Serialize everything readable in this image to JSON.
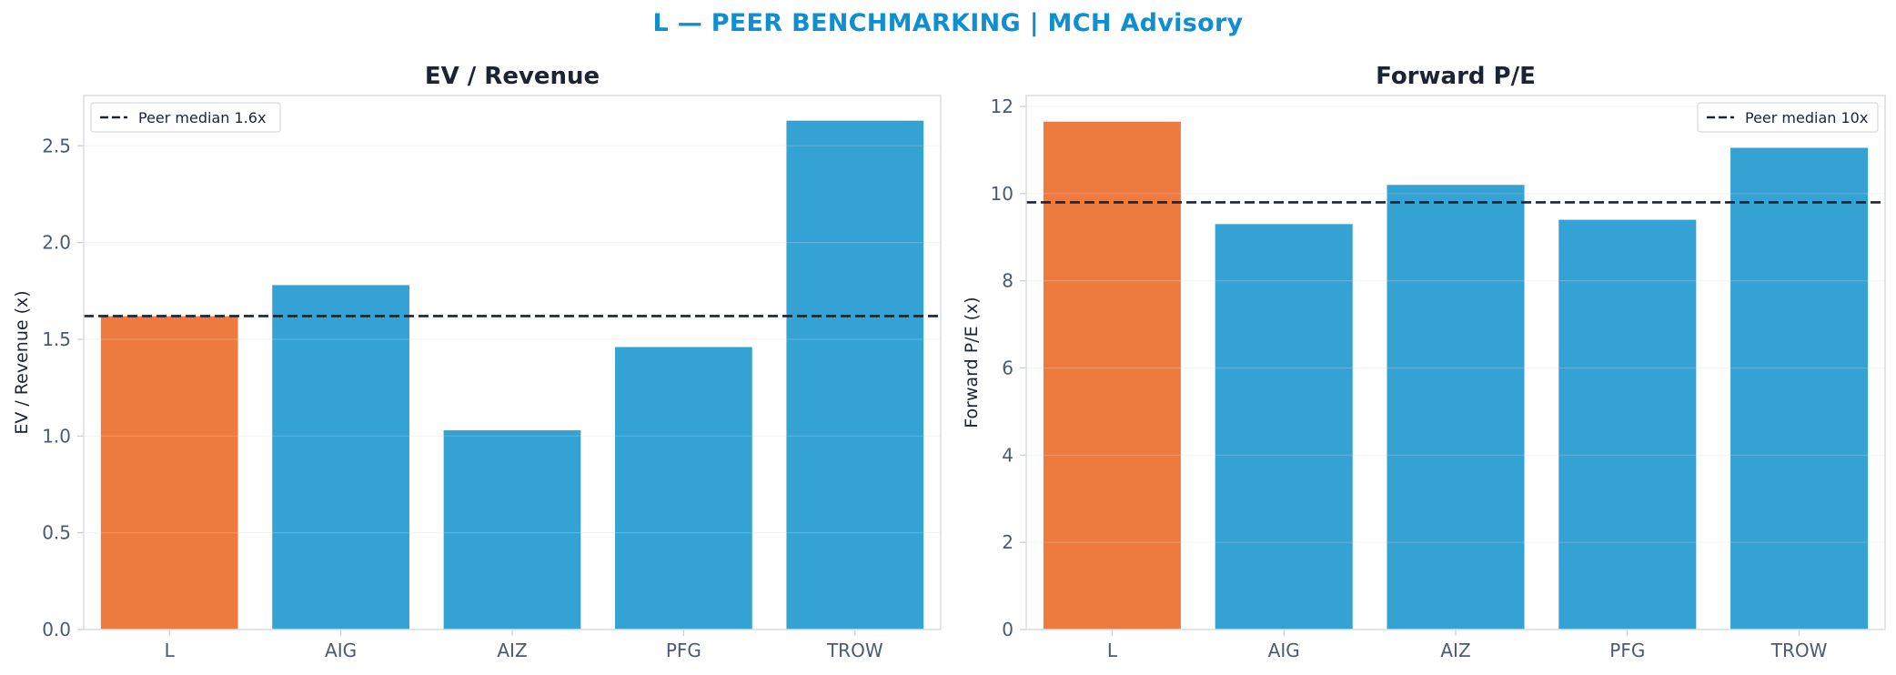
{
  "figure": {
    "title": "L — PEER BENCHMARKING | MCH Advisory",
    "title_color": "#0f8fd0"
  },
  "colors": {
    "highlight": "#ed7b3f",
    "peer": "#34a2d3",
    "median_line": "#1c2433",
    "axis_text": "#4a5a75",
    "title_text": "#1c2433",
    "grid": "#f0f2f5",
    "spine": "#d9dde3"
  },
  "chart_data": [
    {
      "type": "bar",
      "title": "EV / Revenue",
      "xlabel": "",
      "ylabel": "EV / Revenue (x)",
      "categories": [
        "L",
        "AIG",
        "AIZ",
        "PFG",
        "TROW"
      ],
      "values": [
        1.62,
        1.78,
        1.03,
        1.46,
        2.63
      ],
      "highlight_category": "L",
      "ylim": [
        0,
        2.76
      ],
      "yticks": [
        "0.0",
        "0.5",
        "1.0",
        "1.5",
        "2.0",
        "2.5"
      ],
      "reference_line": {
        "value": 1.62,
        "label": "Peer median 1.6x",
        "style": "dashed"
      },
      "legend_position": "upper-left",
      "grid": true
    },
    {
      "type": "bar",
      "title": "Forward P/E",
      "xlabel": "",
      "ylabel": "Forward P/E (x)",
      "categories": [
        "L",
        "AIG",
        "AIZ",
        "PFG",
        "TROW"
      ],
      "values": [
        11.65,
        9.3,
        10.2,
        9.4,
        11.05
      ],
      "highlight_category": "L",
      "ylim": [
        0,
        12.25
      ],
      "yticks": [
        "0",
        "2",
        "4",
        "6",
        "8",
        "10",
        "12"
      ],
      "reference_line": {
        "value": 9.8,
        "label": "Peer median 10x",
        "style": "dashed"
      },
      "legend_position": "upper-right",
      "grid": true
    }
  ]
}
